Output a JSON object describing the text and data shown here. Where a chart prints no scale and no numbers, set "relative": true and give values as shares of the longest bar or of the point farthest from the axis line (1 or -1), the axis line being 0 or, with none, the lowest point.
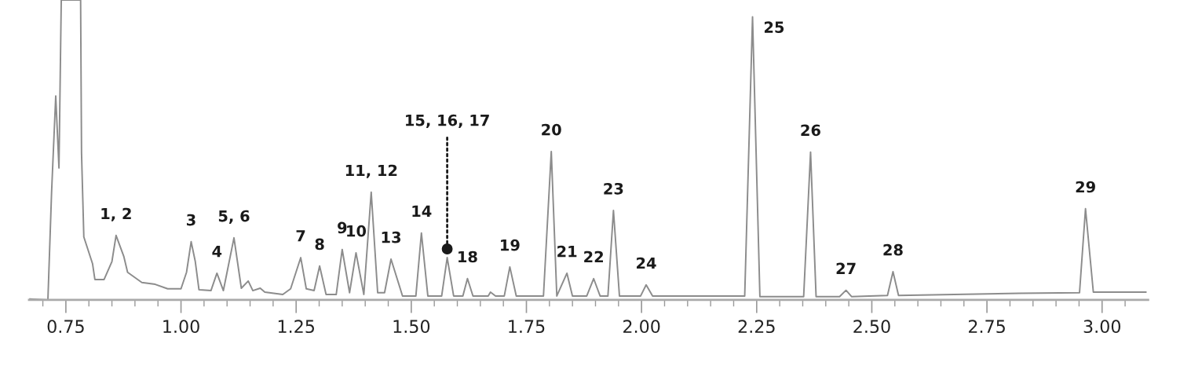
{
  "chart_data": {
    "type": "line",
    "relative": true,
    "x": [
      0.672,
      0.711,
      0.719,
      0.728,
      0.735,
      0.74,
      0.782,
      0.784,
      0.789,
      0.808,
      0.813,
      0.833,
      0.85,
      0.859,
      0.876,
      0.884,
      0.915,
      0.944,
      0.971,
      1.0,
      1.012,
      1.022,
      1.031,
      1.039,
      1.065,
      1.078,
      1.092,
      1.115,
      1.131,
      1.146,
      1.156,
      1.172,
      1.182,
      1.221,
      1.238,
      1.26,
      1.272,
      1.289,
      1.301,
      1.315,
      1.337,
      1.35,
      1.366,
      1.38,
      1.397,
      1.413,
      1.427,
      1.442,
      1.456,
      1.481,
      1.51,
      1.522,
      1.536,
      1.566,
      1.578,
      1.592,
      1.612,
      1.622,
      1.634,
      1.667,
      1.672,
      1.683,
      1.702,
      1.714,
      1.728,
      1.787,
      1.804,
      1.816,
      1.838,
      1.85,
      1.881,
      1.896,
      1.91,
      1.927,
      1.939,
      1.952,
      1.998,
      2.01,
      2.024,
      2.224,
      2.241,
      2.257,
      2.352,
      2.367,
      2.379,
      2.43,
      2.444,
      2.456,
      2.534,
      2.546,
      2.558,
      2.82,
      2.951,
      2.964,
      2.981,
      3.095
    ],
    "series": [
      {
        "color": "#8c8c8c",
        "values": [
          0.003,
          0.0,
          0.36,
          0.68,
          0.44,
          1.0,
          1.0,
          0.49,
          0.21,
          0.12,
          0.068,
          0.068,
          0.128,
          0.215,
          0.144,
          0.092,
          0.058,
          0.052,
          0.037,
          0.037,
          0.092,
          0.194,
          0.128,
          0.034,
          0.031,
          0.089,
          0.031,
          0.207,
          0.039,
          0.063,
          0.031,
          0.039,
          0.026,
          0.018,
          0.037,
          0.141,
          0.037,
          0.031,
          0.113,
          0.018,
          0.018,
          0.168,
          0.024,
          0.157,
          0.018,
          0.359,
          0.024,
          0.024,
          0.136,
          0.013,
          0.013,
          0.223,
          0.013,
          0.013,
          0.141,
          0.013,
          0.013,
          0.071,
          0.013,
          0.013,
          0.026,
          0.013,
          0.013,
          0.11,
          0.013,
          0.013,
          0.495,
          0.013,
          0.089,
          0.013,
          0.013,
          0.071,
          0.013,
          0.013,
          0.298,
          0.013,
          0.013,
          0.05,
          0.013,
          0.013,
          0.944,
          0.011,
          0.011,
          0.493,
          0.011,
          0.011,
          0.032,
          0.011,
          0.015,
          0.094,
          0.015,
          0.022,
          0.024,
          0.304,
          0.026,
          0.026
        ]
      }
    ],
    "xlim": [
      0.67,
      3.1
    ],
    "xticks": [
      {
        "value": 0.7,
        "label": null
      },
      {
        "value": 0.75,
        "label": "0.75"
      },
      {
        "value": 0.8,
        "label": null
      },
      {
        "value": 0.85,
        "label": null
      },
      {
        "value": 0.9,
        "label": null
      },
      {
        "value": 0.95,
        "label": null
      },
      {
        "value": 1.0,
        "label": "1.00"
      },
      {
        "value": 1.05,
        "label": null
      },
      {
        "value": 1.1,
        "label": null
      },
      {
        "value": 1.15,
        "label": null
      },
      {
        "value": 1.2,
        "label": null
      },
      {
        "value": 1.25,
        "label": "1.25"
      },
      {
        "value": 1.3,
        "label": null
      },
      {
        "value": 1.35,
        "label": null
      },
      {
        "value": 1.4,
        "label": null
      },
      {
        "value": 1.45,
        "label": null
      },
      {
        "value": 1.5,
        "label": "1.50"
      },
      {
        "value": 1.55,
        "label": null
      },
      {
        "value": 1.6,
        "label": null
      },
      {
        "value": 1.65,
        "label": null
      },
      {
        "value": 1.7,
        "label": null
      },
      {
        "value": 1.75,
        "label": "1.75"
      },
      {
        "value": 1.8,
        "label": null
      },
      {
        "value": 1.85,
        "label": null
      },
      {
        "value": 1.9,
        "label": null
      },
      {
        "value": 1.95,
        "label": null
      },
      {
        "value": 2.0,
        "label": "2.00"
      },
      {
        "value": 2.05,
        "label": null
      },
      {
        "value": 2.1,
        "label": null
      },
      {
        "value": 2.15,
        "label": null
      },
      {
        "value": 2.2,
        "label": null
      },
      {
        "value": 2.25,
        "label": "2.25"
      },
      {
        "value": 2.3,
        "label": null
      },
      {
        "value": 2.35,
        "label": null
      },
      {
        "value": 2.4,
        "label": null
      },
      {
        "value": 2.45,
        "label": null
      },
      {
        "value": 2.5,
        "label": "2.50"
      },
      {
        "value": 2.55,
        "label": null
      },
      {
        "value": 2.6,
        "label": null
      },
      {
        "value": 2.65,
        "label": null
      },
      {
        "value": 2.7,
        "label": null
      },
      {
        "value": 2.75,
        "label": "2.75"
      },
      {
        "value": 2.8,
        "label": null
      },
      {
        "value": 2.85,
        "label": null
      },
      {
        "value": 2.9,
        "label": null
      },
      {
        "value": 2.95,
        "label": null
      },
      {
        "value": 3.0,
        "label": "3.00"
      },
      {
        "value": 3.05,
        "label": null
      }
    ],
    "annotations": [
      {
        "text": "1, 2",
        "x": 0.859,
        "y": 0.215
      },
      {
        "text": "3",
        "x": 1.022,
        "y": 0.194
      },
      {
        "text": "4",
        "x": 1.078,
        "y": 0.089
      },
      {
        "text": "5, 6",
        "x": 1.115,
        "y": 0.207
      },
      {
        "text": "7",
        "x": 1.26,
        "y": 0.141
      },
      {
        "text": "8",
        "x": 1.301,
        "y": 0.113
      },
      {
        "text": "9",
        "x": 1.35,
        "y": 0.168
      },
      {
        "text": "10",
        "x": 1.38,
        "y": 0.157
      },
      {
        "text": "11, 12",
        "x": 1.413,
        "y": 0.359
      },
      {
        "text": "13",
        "x": 1.456,
        "y": 0.136
      },
      {
        "text": "14",
        "x": 1.522,
        "y": 0.223
      },
      {
        "text": "15, 16, 17",
        "x": 1.578,
        "y": 0.17
      },
      {
        "text": "18",
        "x": 1.622,
        "y": 0.071
      },
      {
        "text": "19",
        "x": 1.714,
        "y": 0.11
      },
      {
        "text": "20",
        "x": 1.804,
        "y": 0.495
      },
      {
        "text": "21",
        "x": 1.838,
        "y": 0.089
      },
      {
        "text": "22",
        "x": 1.896,
        "y": 0.071
      },
      {
        "text": "23",
        "x": 1.939,
        "y": 0.298
      },
      {
        "text": "24",
        "x": 2.01,
        "y": 0.05
      },
      {
        "text": "25",
        "x": 2.241,
        "y": 0.944
      },
      {
        "text": "26",
        "x": 2.367,
        "y": 0.493
      },
      {
        "text": "27",
        "x": 2.444,
        "y": 0.032
      },
      {
        "text": "28",
        "x": 2.546,
        "y": 0.094
      },
      {
        "text": "29",
        "x": 2.964,
        "y": 0.304
      }
    ]
  }
}
